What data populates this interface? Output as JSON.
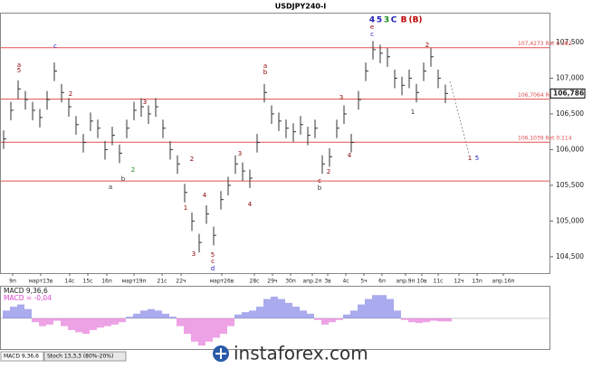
{
  "chart_data": {
    "type": "ohlc",
    "title": "USDJPY240-I",
    "categories": [
      "9п",
      "март13в",
      "14с",
      "15с",
      "16п",
      "март19п",
      "21с",
      "22ч",
      "март26в",
      "28с",
      "29ч",
      "30п",
      "апр.2п",
      "3в",
      "4с",
      "5ч",
      "6п",
      "апр.9п",
      "10в",
      "11с",
      "12ч",
      "13п",
      "апр.16п"
    ],
    "close": [
      106.15,
      106.55,
      106.85,
      106.7,
      106.55,
      106.45,
      106.7,
      107.1,
      106.8,
      106.6,
      106.35,
      106.1,
      106.4,
      106.3,
      106.0,
      106.2,
      105.95,
      106.3,
      106.55,
      106.6,
      106.5,
      106.6,
      106.3,
      106.0,
      105.8,
      105.4,
      105.0,
      104.7,
      105.1,
      104.8,
      105.3,
      105.5,
      105.8,
      105.7,
      105.6,
      106.1,
      106.8,
      106.5,
      106.4,
      106.3,
      106.25,
      106.35,
      106.2,
      106.3,
      105.8,
      105.9,
      106.3,
      106.5,
      106.1,
      106.7,
      107.1,
      107.4,
      107.35,
      107.3,
      107.0,
      106.9,
      107.0,
      106.8,
      107.1,
      107.3,
      107.0,
      106.786
    ],
    "high": [
      106.27,
      106.67,
      106.97,
      106.82,
      106.67,
      106.57,
      106.82,
      107.22,
      106.92,
      106.72,
      106.47,
      106.22,
      106.52,
      106.42,
      106.12,
      106.32,
      106.07,
      106.42,
      106.67,
      106.72,
      106.62,
      106.72,
      106.42,
      106.12,
      105.92,
      105.52,
      105.12,
      104.82,
      105.22,
      104.92,
      105.42,
      105.62,
      105.92,
      105.82,
      105.72,
      106.22,
      106.92,
      106.62,
      106.52,
      106.42,
      106.37,
      106.47,
      106.32,
      106.42,
      105.92,
      106.02,
      106.42,
      106.62,
      106.22,
      106.82,
      107.22,
      107.52,
      107.47,
      107.42,
      107.12,
      107.02,
      107.12,
      106.92,
      107.22,
      107.42,
      107.12,
      106.91
    ],
    "low": [
      106.01,
      106.41,
      106.71,
      106.56,
      106.41,
      106.31,
      106.56,
      106.96,
      106.66,
      106.46,
      106.21,
      105.96,
      106.26,
      106.16,
      105.86,
      106.06,
      105.81,
      106.16,
      106.41,
      106.46,
      106.36,
      106.46,
      106.16,
      105.86,
      105.66,
      105.26,
      104.86,
      104.56,
      104.96,
      104.66,
      105.16,
      105.36,
      105.66,
      105.56,
      105.46,
      105.96,
      106.66,
      106.36,
      106.26,
      106.16,
      106.11,
      106.21,
      106.06,
      106.16,
      105.66,
      105.76,
      106.16,
      106.36,
      105.96,
      106.56,
      106.96,
      107.26,
      107.21,
      107.16,
      106.86,
      106.76,
      106.86,
      106.66,
      106.96,
      107.16,
      106.86,
      106.65
    ],
    "bar_color": "#333333",
    "last_price": {
      "value": 106.786,
      "label": "106,786"
    },
    "ylim": [
      104.27,
      107.905
    ],
    "yticks": [
      {
        "value": 107.5,
        "label": "107,500"
      },
      {
        "value": 107.0,
        "label": "107,000"
      },
      {
        "value": 106.5,
        "label": "106,500"
      },
      {
        "value": 106.0,
        "label": "106,000"
      },
      {
        "value": 105.5,
        "label": "105,500"
      },
      {
        "value": 105.0,
        "label": "105,000"
      },
      {
        "value": 104.5,
        "label": "104,500"
      }
    ],
    "levels": [
      {
        "value": 107.4273,
        "label": "107,4273 Ret 0.382"
      },
      {
        "value": 106.7064,
        "label": "106,7064 Ret 0.236"
      },
      {
        "value": 106.1039,
        "label": "106,1039 Ret 0.114"
      },
      {
        "value": 105.56
      }
    ],
    "level_color": "#e05050",
    "wave_labels": [
      {
        "text": "4",
        "color": "#1c1cb4"
      },
      {
        "text": "5",
        "color": "#1c1cb4"
      },
      {
        "text": "3",
        "color": "#1a8a1a"
      },
      {
        "text": "C",
        "color": "#1c1cb4"
      },
      {
        "text": "B",
        "color": "#c00000"
      },
      {
        "text": "(B)",
        "color": "#c00000"
      },
      {
        "text": "e",
        "color": "#8b0000"
      },
      {
        "text": "c",
        "color": "#1c1cb4"
      },
      {
        "text": "2",
        "color": "#8b0000"
      },
      {
        "text": "1",
        "color": "#333333"
      },
      {
        "text": "3",
        "color": "#8b0000"
      },
      {
        "text": "4",
        "color": "#8b0000"
      },
      {
        "text": "c",
        "color": "#8b0000"
      },
      {
        "text": "b",
        "color": "#333333"
      },
      {
        "text": "2",
        "color": "#8b0000"
      },
      {
        "text": "a",
        "color": "#8b0000"
      },
      {
        "text": "b",
        "color": "#8b0000"
      },
      {
        "text": "4",
        "color": "#8b0000"
      },
      {
        "text": "3",
        "color": "#8b0000"
      },
      {
        "text": "1",
        "color": "#8b0000"
      },
      {
        "text": "2",
        "color": "#8b0000"
      },
      {
        "text": "3",
        "color": "#8b0000"
      },
      {
        "text": "4",
        "color": "#8b0000"
      },
      {
        "text": "5",
        "color": "#8b0000"
      },
      {
        "text": "c",
        "color": "#8b0000"
      },
      {
        "text": "d",
        "color": "#1c1cb4"
      },
      {
        "text": "a",
        "color": "#333333"
      },
      {
        "text": "2",
        "color": "#1a8a1a"
      },
      {
        "text": "b",
        "color": "#333333"
      },
      {
        "text": "c",
        "color": "#1c1cb4"
      },
      {
        "text": "a",
        "color": "#8b0000"
      },
      {
        "text": "5",
        "color": "#8b0000"
      },
      {
        "text": "2",
        "color": "#8b0000"
      },
      {
        "text": "3",
        "color": "#8b0000"
      },
      {
        "text": "1",
        "color": "#8b0000"
      },
      {
        "text": "5",
        "color": "#1c1cb4"
      }
    ],
    "macd": {
      "label": "MACD 9,36,6",
      "value_text": "MACD = -0,04",
      "value": -0.04,
      "pos_color": "#5555dd",
      "neg_color": "#dd44cc",
      "values": [
        0.1,
        0.15,
        0.18,
        0.12,
        -0.05,
        -0.1,
        -0.08,
        -0.03,
        -0.1,
        -0.15,
        -0.18,
        -0.2,
        -0.15,
        -0.12,
        -0.1,
        -0.08,
        -0.05,
        0.02,
        0.06,
        0.1,
        0.12,
        0.1,
        0.06,
        0.02,
        -0.1,
        -0.2,
        -0.3,
        -0.35,
        -0.3,
        -0.25,
        -0.2,
        -0.1,
        0.05,
        0.08,
        0.1,
        0.15,
        0.25,
        0.28,
        0.25,
        0.2,
        0.15,
        0.1,
        0.06,
        -0.02,
        -0.08,
        -0.05,
        -0.02,
        0.05,
        0.1,
        0.18,
        0.25,
        0.3,
        0.3,
        0.25,
        0.1,
        -0.02,
        -0.05,
        -0.06,
        -0.05,
        -0.03,
        -0.04,
        -0.04
      ]
    },
    "tabs": [
      "MACD 9,36,6",
      "Stoch 13,3,3 (80%-20%)"
    ],
    "watermark": "instaforex.com"
  }
}
